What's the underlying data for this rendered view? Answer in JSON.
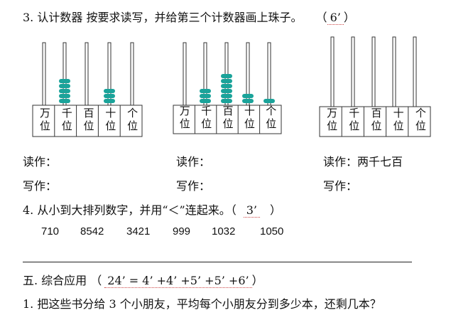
{
  "q3": {
    "title": "3. 认计数器  按要求读写，并给第三个计数器画上珠子。",
    "score_open": "（",
    "score": "6’",
    "score_close": "）",
    "places": [
      {
        "top": "万",
        "bottom": "位"
      },
      {
        "top": "千",
        "bottom": "位"
      },
      {
        "top": "百",
        "bottom": "位"
      },
      {
        "top": "十",
        "bottom": "位"
      },
      {
        "top": "个",
        "bottom": "位"
      }
    ],
    "abaci": [
      {
        "beads": [
          0,
          5,
          0,
          3,
          0
        ]
      },
      {
        "beads": [
          0,
          3,
          6,
          2,
          1
        ]
      },
      {
        "beads": [
          0,
          0,
          0,
          0,
          0
        ]
      }
    ],
    "read_label": "读作：",
    "write_label": "写作：",
    "abacus3_read_value": "两千七百",
    "bead_color": "#1aa39a"
  },
  "q4": {
    "title": "4. 从小到大排列数字，并用“＜”连起来。（",
    "score": "3’",
    "score_close": "）",
    "numbers": [
      "710",
      "8542",
      "3421",
      "999",
      "1032",
      "1050"
    ]
  },
  "section5": {
    "title": "五. 综合应用  （",
    "score": "24’ = 4’ +4’ +5’ +5’ +6’",
    "score_close": "）"
  },
  "problem1": {
    "text": "1. 把这些书分给 3 个小朋友，平均每个小朋友分到多少本，还剩几本？"
  }
}
